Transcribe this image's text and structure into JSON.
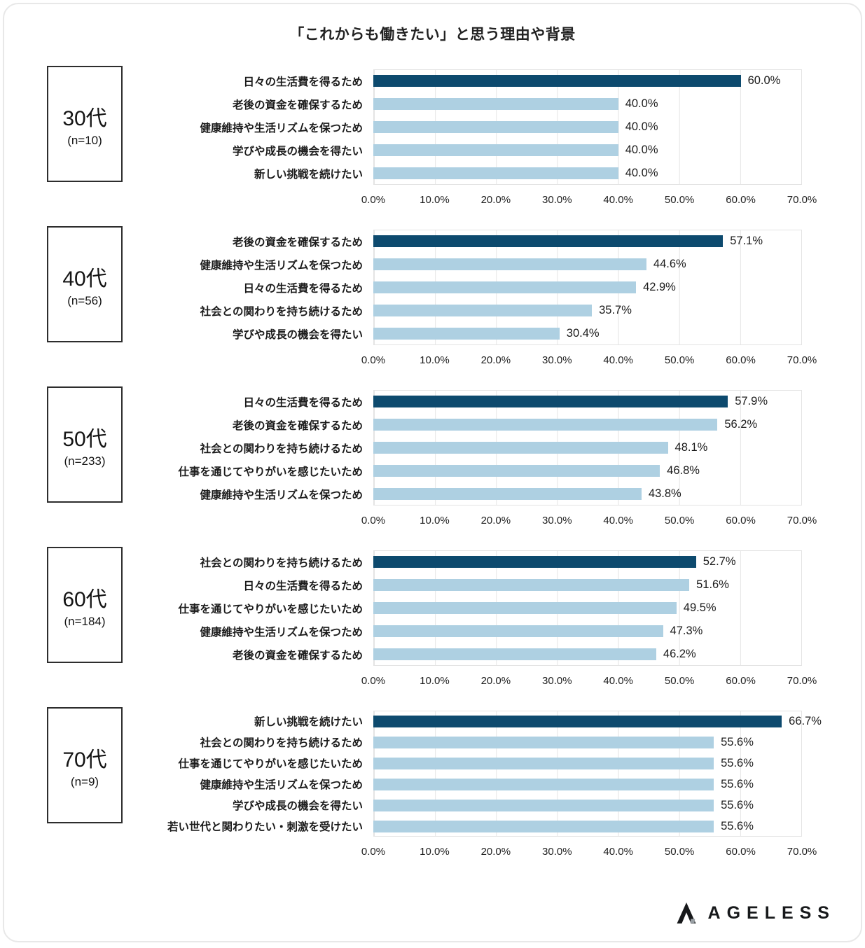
{
  "title": "「これからも働きたい」と思う理由や背景",
  "axis_ticks": [
    "0.0%",
    "10.0%",
    "20.0%",
    "30.0%",
    "40.0%",
    "50.0%",
    "60.0%",
    "70.0%"
  ],
  "colors": {
    "primary": "#0d4a6e",
    "secondary": "#aed0e2",
    "grid": "#e4e4e4"
  },
  "logo": {
    "text": "AGELESS",
    "icon": "ageless-caret-icon"
  },
  "chart_data": {
    "type": "bar",
    "orientation": "horizontal",
    "title": "「これからも働きたい」と思う理由や背景",
    "xlabel": "",
    "ylabel": "",
    "unit": "%",
    "xlim": [
      0,
      70
    ],
    "grid": true,
    "legend": "none",
    "groups": [
      {
        "label": "30代",
        "n": "(n=10)",
        "items": [
          {
            "label": "日々の生活費を得るため",
            "value": 60.0,
            "display": "60.0%"
          },
          {
            "label": "老後の資金を確保するため",
            "value": 40.0,
            "display": "40.0%"
          },
          {
            "label": "健康維持や生活リズムを保つため",
            "value": 40.0,
            "display": "40.0%"
          },
          {
            "label": "学びや成長の機会を得たい",
            "value": 40.0,
            "display": "40.0%"
          },
          {
            "label": "新しい挑戦を続けたい",
            "value": 40.0,
            "display": "40.0%"
          }
        ]
      },
      {
        "label": "40代",
        "n": "(n=56)",
        "items": [
          {
            "label": "老後の資金を確保するため",
            "value": 57.1,
            "display": "57.1%"
          },
          {
            "label": "健康維持や生活リズムを保つため",
            "value": 44.6,
            "display": "44.6%"
          },
          {
            "label": "日々の生活費を得るため",
            "value": 42.9,
            "display": "42.9%"
          },
          {
            "label": "社会との関わりを持ち続けるため",
            "value": 35.7,
            "display": "35.7%"
          },
          {
            "label": "学びや成長の機会を得たい",
            "value": 30.4,
            "display": "30.4%"
          }
        ]
      },
      {
        "label": "50代",
        "n": "(n=233)",
        "items": [
          {
            "label": "日々の生活費を得るため",
            "value": 57.9,
            "display": "57.9%"
          },
          {
            "label": "老後の資金を確保するため",
            "value": 56.2,
            "display": "56.2%"
          },
          {
            "label": "社会との関わりを持ち続けるため",
            "value": 48.1,
            "display": "48.1%"
          },
          {
            "label": "仕事を通じてやりがいを感じたいため",
            "value": 46.8,
            "display": "46.8%"
          },
          {
            "label": "健康維持や生活リズムを保つため",
            "value": 43.8,
            "display": "43.8%"
          }
        ]
      },
      {
        "label": "60代",
        "n": "(n=184)",
        "items": [
          {
            "label": "社会との関わりを持ち続けるため",
            "value": 52.7,
            "display": "52.7%"
          },
          {
            "label": "日々の生活費を得るため",
            "value": 51.6,
            "display": "51.6%"
          },
          {
            "label": "仕事を通じてやりがいを感じたいため",
            "value": 49.5,
            "display": "49.5%"
          },
          {
            "label": "健康維持や生活リズムを保つため",
            "value": 47.3,
            "display": "47.3%"
          },
          {
            "label": "老後の資金を確保するため",
            "value": 46.2,
            "display": "46.2%"
          }
        ]
      },
      {
        "label": "70代",
        "n": "(n=9)",
        "items": [
          {
            "label": "新しい挑戦を続けたい",
            "value": 66.7,
            "display": "66.7%"
          },
          {
            "label": "社会との関わりを持ち続けるため",
            "value": 55.6,
            "display": "55.6%"
          },
          {
            "label": "仕事を通じてやりがいを感じたいため",
            "value": 55.6,
            "display": "55.6%"
          },
          {
            "label": "健康維持や生活リズムを保つため",
            "value": 55.6,
            "display": "55.6%"
          },
          {
            "label": "学びや成長の機会を得たい",
            "value": 55.6,
            "display": "55.6%"
          },
          {
            "label": "若い世代と関わりたい・刺激を受けたい",
            "value": 55.6,
            "display": "55.6%"
          }
        ]
      }
    ]
  }
}
